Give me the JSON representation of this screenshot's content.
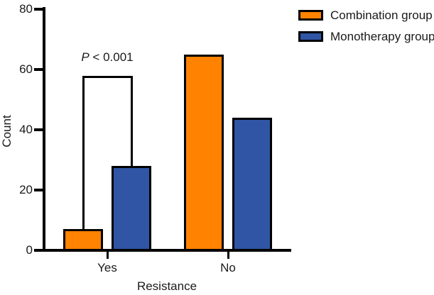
{
  "chart_data": {
    "type": "bar",
    "title": "",
    "xlabel": "Resistance",
    "ylabel": "Count",
    "categories": [
      "Yes",
      "No"
    ],
    "series": [
      {
        "name": "Combination group",
        "color": "#FF8200",
        "values": [
          7,
          65
        ]
      },
      {
        "name": "Monotherapy group",
        "color": "#2F55A4",
        "values": [
          28,
          44
        ]
      }
    ],
    "ylim": [
      0,
      80
    ],
    "yticks": [
      0,
      20,
      40,
      60,
      80
    ],
    "grid": false,
    "legend_position": "top-right",
    "bar_border_color": "#000000",
    "axis_color": "#000000",
    "annotation": {
      "full_text": "P < 0.001",
      "p_label": "P",
      "p_rest": " < 0.001",
      "category": "Yes",
      "bracket_top_value": 58
    }
  }
}
